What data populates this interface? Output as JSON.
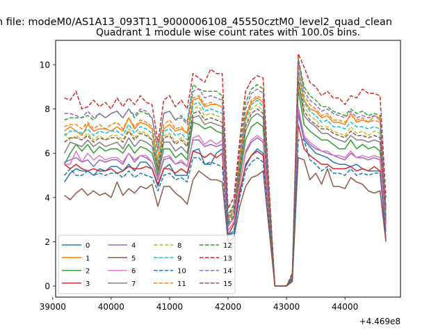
{
  "suptitle": "n file: modeM0/AS1A13_093T11_9000006108_45550cztM0_level2_quad_clean",
  "chart_data": {
    "type": "line",
    "title": "Quadrant 1 module wise count rates with 100.0s bins.",
    "xlabel": "",
    "ylabel": "",
    "x_offset_label": "+4.469e8",
    "xlim": [
      39050,
      44950
    ],
    "ylim": [
      -0.5,
      11.1
    ],
    "xticks": [
      39000,
      40000,
      41000,
      42000,
      43000,
      44000
    ],
    "xtick_labels": [
      "39000",
      "40000",
      "41000",
      "42000",
      "43000",
      "44000"
    ],
    "yticks": [
      0,
      2,
      4,
      6,
      8,
      10
    ],
    "ytick_labels": [
      "0",
      "2",
      "4",
      "6",
      "8",
      "10"
    ],
    "grid": false,
    "legend_position": "lower-left",
    "legend_columns": 4,
    "x": [
      39200,
      39300,
      39400,
      39500,
      39600,
      39700,
      39800,
      39900,
      40000,
      40100,
      40200,
      40300,
      40400,
      40500,
      40600,
      40700,
      40800,
      40900,
      41000,
      41100,
      41200,
      41300,
      41400,
      41500,
      41600,
      41700,
      41800,
      41900,
      42000,
      42100,
      42200,
      42300,
      42400,
      42500,
      42600,
      42700,
      42800,
      42900,
      43000,
      43100,
      43200,
      43300,
      43400,
      43500,
      43600,
      43700,
      43800,
      43900,
      44000,
      44100,
      44200,
      44300,
      44400,
      44500,
      44600,
      44700
    ],
    "series": [
      {
        "name": "0",
        "color": "#1f77b4",
        "dash": "solid",
        "values": [
          4.7,
          5.1,
          5.3,
          5.2,
          5.2,
          5.0,
          5.3,
          5.2,
          5.4,
          5.4,
          5.2,
          5.5,
          5.2,
          5.6,
          5.6,
          5.3,
          4.5,
          5.3,
          5.5,
          5.0,
          5.0,
          5.0,
          6.1,
          6.2,
          5.5,
          5.5,
          6.0,
          6.2,
          2.3,
          2.4,
          4.2,
          5.5,
          5.9,
          6.2,
          6.0,
          3.3,
          0.0,
          0.0,
          0.0,
          0.3,
          7.8,
          6.6,
          6.3,
          6.0,
          5.9,
          5.8,
          5.6,
          5.5,
          5.5,
          5.4,
          5.5,
          5.3,
          5.2,
          5.2,
          5.2,
          2.8
        ]
      },
      {
        "name": "1",
        "color": "#ff7f0e",
        "dash": "solid",
        "values": [
          7.0,
          7.2,
          7.0,
          6.8,
          7.3,
          7.0,
          7.1,
          7.1,
          7.0,
          7.2,
          7.0,
          7.6,
          7.1,
          7.4,
          7.3,
          7.1,
          5.5,
          7.1,
          7.3,
          7.0,
          7.1,
          6.9,
          8.4,
          8.5,
          8.1,
          8.2,
          8.2,
          8.1,
          3.0,
          3.4,
          5.6,
          7.6,
          8.3,
          8.5,
          8.3,
          3.9,
          0.0,
          0.0,
          0.0,
          0.5,
          9.7,
          8.4,
          8.0,
          7.9,
          7.6,
          7.7,
          7.4,
          7.4,
          7.3,
          7.8,
          7.4,
          7.5,
          7.4,
          7.7,
          7.6,
          3.4
        ]
      },
      {
        "name": "2",
        "color": "#2ca02c",
        "dash": "solid",
        "values": [
          5.5,
          6.0,
          6.4,
          6.1,
          6.4,
          6.0,
          6.3,
          6.1,
          6.2,
          6.2,
          6.0,
          6.4,
          6.0,
          6.3,
          6.2,
          6.0,
          5.0,
          6.2,
          6.2,
          5.8,
          6.0,
          5.7,
          7.4,
          7.3,
          7.1,
          7.2,
          7.0,
          6.9,
          2.5,
          2.9,
          4.9,
          6.6,
          7.2,
          7.4,
          7.2,
          3.5,
          0.0,
          0.0,
          0.0,
          0.4,
          8.9,
          7.3,
          7.0,
          6.8,
          6.6,
          6.6,
          6.4,
          6.2,
          6.2,
          6.6,
          6.2,
          6.4,
          6.2,
          6.3,
          6.1,
          2.9
        ]
      },
      {
        "name": "3",
        "color": "#d62728",
        "dash": "solid",
        "values": [
          5.5,
          5.3,
          5.5,
          5.3,
          5.2,
          5.3,
          5.2,
          5.2,
          5.3,
          5.1,
          5.2,
          5.4,
          5.3,
          5.3,
          5.4,
          5.3,
          4.6,
          5.3,
          5.3,
          5.1,
          5.3,
          5.1,
          6.1,
          6.0,
          5.8,
          6.0,
          5.8,
          6.0,
          2.3,
          2.8,
          4.3,
          5.4,
          5.9,
          6.1,
          5.9,
          3.2,
          0.0,
          0.0,
          0.0,
          0.3,
          7.3,
          6.2,
          5.9,
          5.7,
          5.5,
          5.5,
          5.3,
          5.3,
          5.3,
          5.4,
          5.2,
          5.3,
          5.2,
          5.4,
          5.2,
          2.1
        ]
      },
      {
        "name": "4",
        "color": "#9467bd",
        "dash": "solid",
        "values": [
          5.6,
          5.7,
          5.8,
          5.6,
          5.7,
          5.4,
          5.7,
          5.6,
          5.7,
          5.7,
          5.5,
          6.0,
          5.6,
          5.9,
          5.8,
          5.6,
          4.8,
          5.7,
          5.8,
          5.5,
          5.6,
          5.4,
          6.6,
          6.6,
          6.3,
          6.4,
          6.3,
          6.4,
          2.5,
          2.9,
          4.6,
          6.0,
          6.5,
          6.7,
          6.5,
          3.4,
          0.0,
          0.0,
          0.0,
          0.4,
          8.0,
          6.7,
          6.4,
          6.2,
          6.1,
          6.0,
          5.9,
          5.8,
          5.7,
          6.0,
          5.8,
          5.8,
          5.7,
          5.8,
          5.7,
          2.6
        ]
      },
      {
        "name": "5",
        "color": "#8c564b",
        "dash": "solid",
        "values": [
          4.1,
          3.9,
          4.2,
          4.4,
          4.1,
          4.3,
          4.1,
          4.2,
          4.0,
          4.7,
          4.1,
          4.4,
          4.2,
          4.5,
          4.4,
          4.6,
          3.6,
          4.5,
          4.5,
          4.2,
          4.0,
          3.7,
          4.8,
          5.2,
          5.0,
          4.8,
          4.8,
          4.7,
          2.0,
          2.2,
          3.6,
          4.5,
          4.9,
          5.0,
          5.2,
          2.6,
          0.0,
          0.0,
          0.0,
          0.2,
          5.8,
          5.7,
          4.8,
          5.1,
          4.6,
          5.3,
          4.5,
          4.5,
          4.4,
          4.9,
          4.7,
          4.6,
          4.3,
          4.2,
          4.3,
          2.0
        ]
      },
      {
        "name": "6",
        "color": "#e377c2",
        "dash": "solid",
        "values": [
          5.5,
          5.5,
          6.1,
          5.6,
          6.0,
          5.7,
          5.9,
          5.7,
          5.8,
          5.8,
          5.6,
          6.0,
          5.7,
          5.9,
          5.9,
          5.6,
          4.9,
          5.8,
          5.9,
          5.5,
          5.7,
          5.4,
          6.7,
          6.8,
          6.4,
          6.6,
          6.4,
          6.6,
          2.5,
          2.9,
          4.6,
          6.1,
          6.6,
          6.8,
          6.6,
          3.4,
          0.0,
          0.0,
          0.0,
          0.4,
          8.1,
          6.8,
          6.5,
          6.3,
          6.1,
          6.1,
          5.9,
          5.9,
          5.8,
          6.1,
          5.8,
          5.9,
          5.8,
          5.9,
          5.8,
          2.6
        ]
      },
      {
        "name": "7",
        "color": "#7f7f7f",
        "dash": "solid",
        "values": [
          6.0,
          6.5,
          6.4,
          6.3,
          6.6,
          6.3,
          6.5,
          6.3,
          6.4,
          6.5,
          6.2,
          6.7,
          6.3,
          6.6,
          6.5,
          6.3,
          5.2,
          6.5,
          6.5,
          6.1,
          6.3,
          6.0,
          7.6,
          7.7,
          7.3,
          7.4,
          7.3,
          7.2,
          2.7,
          3.1,
          5.2,
          7.0,
          7.6,
          7.8,
          7.6,
          3.7,
          0.0,
          0.0,
          0.0,
          0.4,
          9.3,
          7.7,
          7.4,
          7.2,
          6.9,
          6.9,
          6.7,
          6.6,
          6.5,
          6.8,
          6.6,
          6.6,
          6.5,
          6.6,
          6.5,
          2.9
        ]
      },
      {
        "name": "8",
        "color": "#bcbd22",
        "dash": "dashed",
        "values": [
          6.9,
          6.6,
          6.8,
          6.6,
          6.9,
          6.6,
          6.8,
          6.6,
          6.8,
          6.8,
          6.6,
          7.1,
          6.7,
          7.0,
          6.9,
          6.6,
          5.4,
          6.8,
          6.9,
          6.5,
          6.7,
          6.4,
          8.0,
          8.1,
          7.7,
          7.8,
          7.7,
          7.6,
          2.9,
          3.3,
          5.4,
          7.3,
          8.0,
          8.2,
          7.9,
          3.8,
          0.0,
          0.0,
          0.0,
          0.5,
          9.5,
          8.1,
          7.7,
          7.5,
          7.2,
          7.2,
          7.0,
          6.9,
          6.8,
          7.2,
          6.9,
          7.0,
          6.8,
          7.0,
          6.9,
          3.1
        ]
      },
      {
        "name": "9",
        "color": "#17becf",
        "dash": "dashed",
        "values": [
          6.8,
          7.0,
          7.0,
          6.9,
          7.1,
          6.8,
          7.0,
          6.9,
          7.0,
          7.0,
          6.8,
          7.3,
          6.9,
          7.2,
          7.1,
          6.9,
          5.6,
          7.0,
          7.1,
          6.8,
          6.9,
          6.6,
          8.2,
          8.3,
          7.9,
          8.0,
          7.9,
          7.8,
          2.9,
          3.4,
          5.6,
          7.5,
          8.2,
          8.4,
          8.1,
          3.9,
          0.0,
          0.0,
          0.0,
          0.5,
          9.8,
          8.3,
          7.9,
          7.7,
          7.4,
          7.5,
          7.2,
          7.2,
          7.1,
          7.4,
          7.2,
          7.2,
          7.1,
          7.2,
          7.1,
          3.2
        ]
      },
      {
        "name": "10",
        "color": "#1f77b4",
        "dash": "dashed",
        "values": [
          5.0,
          5.3,
          5.0,
          5.0,
          5.2,
          5.0,
          5.1,
          5.0,
          5.1,
          5.1,
          4.9,
          5.2,
          4.9,
          5.1,
          5.0,
          4.9,
          4.3,
          5.0,
          5.1,
          4.8,
          4.9,
          4.7,
          5.8,
          5.8,
          5.5,
          5.6,
          5.5,
          5.4,
          2.3,
          2.5,
          4.0,
          5.2,
          5.6,
          5.8,
          5.6,
          3.0,
          0.0,
          0.0,
          0.0,
          0.3,
          6.6,
          6.6,
          5.7,
          5.5,
          5.2,
          5.4,
          5.1,
          5.1,
          5.0,
          5.3,
          5.0,
          5.1,
          5.0,
          5.1,
          5.1,
          2.4
        ]
      },
      {
        "name": "11",
        "color": "#ff7f0e",
        "dash": "dashed",
        "values": [
          7.2,
          7.3,
          7.3,
          7.1,
          7.4,
          7.1,
          7.3,
          7.1,
          7.3,
          7.4,
          7.1,
          7.6,
          7.2,
          7.5,
          7.4,
          7.2,
          5.8,
          7.3,
          7.5,
          7.1,
          7.2,
          6.9,
          8.5,
          8.6,
          8.2,
          8.3,
          8.2,
          8.1,
          3.0,
          3.5,
          5.8,
          7.7,
          8.4,
          8.6,
          8.4,
          4.0,
          0.0,
          0.0,
          0.0,
          0.5,
          10.1,
          8.6,
          8.2,
          8.0,
          7.7,
          7.8,
          7.5,
          7.5,
          7.4,
          7.7,
          7.5,
          7.6,
          7.4,
          7.5,
          7.4,
          3.4
        ]
      },
      {
        "name": "12",
        "color": "#2ca02c",
        "dash": "dashed",
        "values": [
          7.5,
          7.6,
          7.6,
          7.6,
          7.7,
          7.5,
          7.8,
          7.6,
          7.8,
          7.9,
          7.6,
          8.0,
          7.6,
          7.9,
          7.8,
          7.6,
          6.2,
          7.8,
          7.9,
          7.5,
          7.7,
          7.4,
          9.1,
          8.9,
          8.8,
          8.8,
          8.8,
          8.6,
          3.2,
          3.7,
          6.2,
          8.3,
          8.9,
          9.1,
          8.9,
          4.3,
          0.0,
          0.0,
          0.0,
          0.5,
          10.3,
          9.0,
          8.6,
          8.4,
          8.1,
          8.1,
          7.9,
          7.8,
          7.7,
          8.0,
          7.8,
          7.9,
          7.7,
          7.8,
          7.7,
          3.6
        ]
      },
      {
        "name": "13",
        "color": "#d62728",
        "dash": "dashed",
        "values": [
          8.5,
          8.4,
          8.8,
          8.0,
          8.1,
          8.4,
          8.1,
          8.3,
          8.0,
          8.5,
          8.1,
          8.5,
          8.2,
          8.6,
          8.3,
          8.2,
          6.5,
          8.4,
          8.6,
          8.1,
          8.4,
          8.0,
          9.6,
          9.4,
          9.2,
          9.8,
          9.6,
          9.6,
          3.5,
          4.0,
          6.6,
          8.8,
          9.3,
          9.5,
          9.4,
          4.6,
          0.0,
          0.0,
          0.0,
          0.6,
          10.5,
          9.9,
          9.2,
          9.0,
          8.6,
          8.8,
          8.5,
          8.5,
          8.2,
          8.6,
          8.5,
          8.9,
          8.7,
          8.7,
          8.6,
          4.0
        ]
      },
      {
        "name": "14",
        "color": "#9467bd",
        "dash": "dashed",
        "values": [
          7.8,
          7.8,
          7.7,
          7.6,
          7.9,
          7.6,
          7.8,
          7.6,
          7.8,
          7.9,
          7.6,
          8.0,
          7.7,
          8.0,
          7.9,
          7.6,
          6.1,
          7.8,
          7.9,
          7.5,
          7.6,
          7.3,
          8.8,
          8.9,
          8.5,
          8.6,
          8.5,
          8.4,
          3.1,
          3.6,
          6.0,
          8.0,
          8.7,
          8.9,
          8.7,
          4.1,
          0.0,
          0.0,
          0.0,
          0.5,
          10.2,
          8.8,
          8.4,
          8.2,
          7.9,
          8.0,
          7.8,
          7.7,
          7.6,
          7.9,
          7.6,
          7.7,
          7.6,
          7.7,
          7.5,
          3.5
        ]
      },
      {
        "name": "15",
        "color": "#8c564b",
        "dash": "dashed",
        "values": [
          6.5,
          6.7,
          6.7,
          6.6,
          6.8,
          6.5,
          6.7,
          6.6,
          6.7,
          6.7,
          6.5,
          7.0,
          6.6,
          6.9,
          6.8,
          6.6,
          5.3,
          6.7,
          6.8,
          6.4,
          6.6,
          6.3,
          7.8,
          7.9,
          7.5,
          7.6,
          7.5,
          7.4,
          2.8,
          3.2,
          5.3,
          7.2,
          7.8,
          8.0,
          7.8,
          3.7,
          0.0,
          0.0,
          0.0,
          0.4,
          9.3,
          7.9,
          7.5,
          7.3,
          7.1,
          7.1,
          6.9,
          6.8,
          6.7,
          7.0,
          6.8,
          6.8,
          6.7,
          6.8,
          6.7,
          3.0
        ]
      }
    ]
  }
}
